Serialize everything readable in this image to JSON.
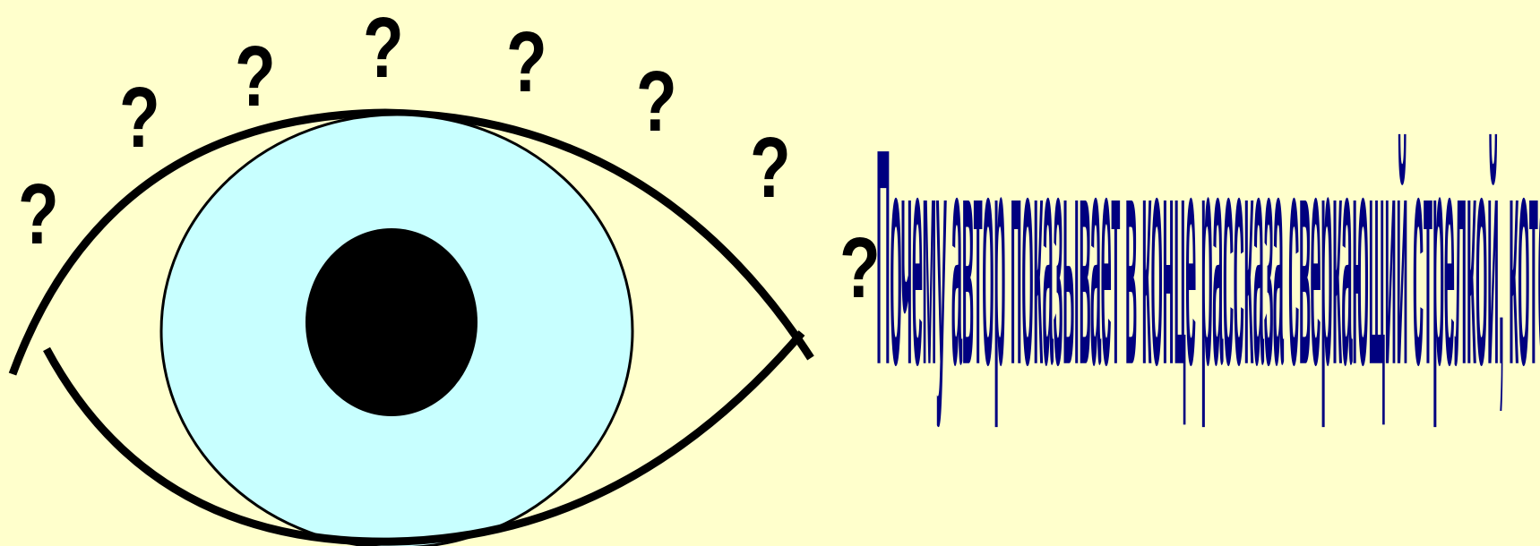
{
  "slide": {
    "background_color": "#ffffcc",
    "question_mark": "?",
    "question_mark_count": 8,
    "caption": "Почему автор показывает в конце рассказа сверкающий стрелкой, который",
    "caption_color": "#000080"
  },
  "eye": {
    "sclera_color": "#ffffcc",
    "iris_color": "#c8ffff",
    "pupil_color": "#000000",
    "outline_color": "#000000"
  }
}
